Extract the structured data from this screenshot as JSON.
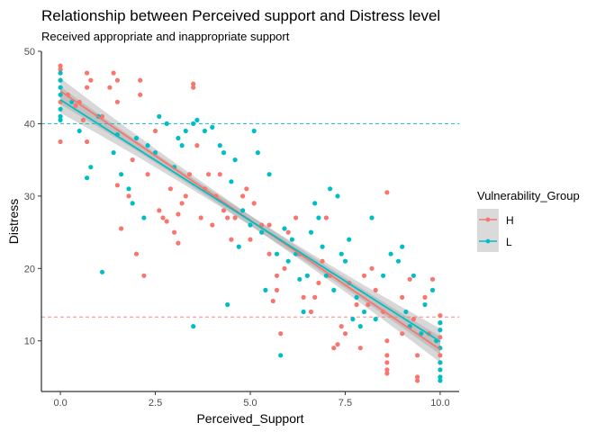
{
  "chart_data": {
    "type": "scatter",
    "title": "Relationship between Perceived support and Distress level",
    "subtitle": "Received appropriate and inappropriate support",
    "xlabel": "Perceived_Support",
    "ylabel": "Distress",
    "xlim": [
      -0.5,
      10.5
    ],
    "ylim": [
      3,
      50
    ],
    "xticks": [
      0,
      2.5,
      5,
      7.5,
      10
    ],
    "xtick_labels": [
      "0.0",
      "2.5",
      "5.0",
      "7.5",
      "10.0"
    ],
    "yticks": [
      10,
      20,
      30,
      40,
      50
    ],
    "ytick_labels": [
      "10",
      "20",
      "30",
      "40",
      "50"
    ],
    "grid": false,
    "legend": {
      "title": "Vulnerability_Group",
      "position": "right",
      "entries": [
        {
          "label": "H",
          "color": "#F8766D"
        },
        {
          "label": "L",
          "color": "#00BFC4"
        }
      ]
    },
    "reference_lines": [
      {
        "group": "L",
        "y": 40,
        "color": "#00BFC4",
        "style": "dashed"
      },
      {
        "group": "H",
        "y": 13.3,
        "color": "#F8766D",
        "style": "dashed"
      }
    ],
    "series": [
      {
        "name": "H",
        "color": "#F8766D",
        "trend": {
          "x": [
            0,
            10
          ],
          "y": [
            44.5,
            8.8
          ],
          "ci_halfwidth_ends": 1.8,
          "ci_halfwidth_mid": 0.7
        },
        "points": [
          [
            0,
            37.5
          ],
          [
            0,
            43
          ],
          [
            0,
            46
          ],
          [
            0,
            47.5
          ],
          [
            0,
            48
          ],
          [
            0.2,
            44
          ],
          [
            0.4,
            42.5
          ],
          [
            0.5,
            43
          ],
          [
            0.6,
            40.5
          ],
          [
            0.7,
            45
          ],
          [
            0.7,
            47
          ],
          [
            0.7,
            37.5
          ],
          [
            0.8,
            46
          ],
          [
            1.1,
            41
          ],
          [
            1.3,
            45
          ],
          [
            1.4,
            47
          ],
          [
            1.5,
            43
          ],
          [
            1.5,
            46
          ],
          [
            1.5,
            31.5
          ],
          [
            1.6,
            25.5
          ],
          [
            1.8,
            30
          ],
          [
            1.9,
            35
          ],
          [
            2.0,
            22
          ],
          [
            2.1,
            44
          ],
          [
            2.1,
            46
          ],
          [
            2.2,
            19
          ],
          [
            2.3,
            33
          ],
          [
            2.5,
            39
          ],
          [
            2.6,
            28
          ],
          [
            2.7,
            27
          ],
          [
            2.8,
            26.5
          ],
          [
            2.9,
            31
          ],
          [
            3.0,
            25
          ],
          [
            3.1,
            23.5
          ],
          [
            3.1,
            27.5
          ],
          [
            3.2,
            29
          ],
          [
            3.3,
            30
          ],
          [
            3.4,
            33
          ],
          [
            3.5,
            45
          ],
          [
            3.5,
            45.5
          ],
          [
            3.6,
            37
          ],
          [
            3.7,
            27
          ],
          [
            3.8,
            31
          ],
          [
            3.9,
            33
          ],
          [
            4.0,
            26
          ],
          [
            4.1,
            30
          ],
          [
            4.2,
            33
          ],
          [
            4.3,
            28
          ],
          [
            4.4,
            27
          ],
          [
            4.5,
            24
          ],
          [
            4.6,
            27
          ],
          [
            4.8,
            30
          ],
          [
            4.9,
            31
          ],
          [
            5.0,
            24
          ],
          [
            5.1,
            29
          ],
          [
            5.3,
            26
          ],
          [
            5.5,
            22
          ],
          [
            5.5,
            26
          ],
          [
            5.6,
            15.5
          ],
          [
            5.7,
            17
          ],
          [
            5.7,
            19
          ],
          [
            5.8,
            11
          ],
          [
            5.9,
            20
          ],
          [
            6.0,
            25
          ],
          [
            6.2,
            27
          ],
          [
            6.3,
            22
          ],
          [
            6.4,
            16
          ],
          [
            6.5,
            19
          ],
          [
            6.6,
            14
          ],
          [
            6.7,
            16
          ],
          [
            6.8,
            18
          ],
          [
            6.9,
            21
          ],
          [
            7.0,
            27
          ],
          [
            7.1,
            19
          ],
          [
            7.2,
            9
          ],
          [
            7.3,
            9.5
          ],
          [
            7.4,
            12
          ],
          [
            7.5,
            11
          ],
          [
            7.6,
            18
          ],
          [
            7.8,
            15
          ],
          [
            7.9,
            9
          ],
          [
            8.0,
            19
          ],
          [
            8.1,
            15
          ],
          [
            8.2,
            20
          ],
          [
            8.3,
            17
          ],
          [
            8.5,
            14
          ],
          [
            8.6,
            30.5
          ],
          [
            8.6,
            10
          ],
          [
            8.6,
            8
          ],
          [
            8.6,
            7
          ],
          [
            8.6,
            6
          ],
          [
            8.6,
            5.5
          ],
          [
            9.0,
            11
          ],
          [
            9.0,
            16
          ],
          [
            9.2,
            18.5
          ],
          [
            9.3,
            13
          ],
          [
            9.4,
            8
          ],
          [
            9.4,
            5
          ],
          [
            9.4,
            4.5
          ],
          [
            9.6,
            16
          ],
          [
            9.7,
            11
          ],
          [
            9.8,
            18.5
          ],
          [
            10.0,
            13.5
          ],
          [
            10.0,
            12.5
          ],
          [
            10.0,
            10.5
          ],
          [
            10.0,
            8
          ],
          [
            10.0,
            7
          ]
        ]
      },
      {
        "name": "L",
        "color": "#00BFC4",
        "trend": {
          "x": [
            0,
            10
          ],
          "y": [
            43.3,
            9.9
          ],
          "ci_halfwidth_ends": 1.8,
          "ci_halfwidth_mid": 0.7
        },
        "points": [
          [
            0,
            40.5
          ],
          [
            0,
            41
          ],
          [
            0,
            42
          ],
          [
            0,
            44
          ],
          [
            0,
            45
          ],
          [
            0,
            46
          ],
          [
            0,
            47
          ],
          [
            0.3,
            43
          ],
          [
            0.5,
            39
          ],
          [
            0.7,
            32.5
          ],
          [
            0.8,
            34
          ],
          [
            1.0,
            41
          ],
          [
            1.1,
            19.5
          ],
          [
            1.4,
            36
          ],
          [
            1.5,
            38.5
          ],
          [
            1.6,
            33
          ],
          [
            1.8,
            31
          ],
          [
            1.9,
            29
          ],
          [
            2.0,
            38
          ],
          [
            2.2,
            27
          ],
          [
            2.3,
            37
          ],
          [
            2.5,
            36
          ],
          [
            2.6,
            41
          ],
          [
            2.8,
            40
          ],
          [
            3.0,
            34
          ],
          [
            3.1,
            38
          ],
          [
            3.2,
            37
          ],
          [
            3.3,
            39
          ],
          [
            3.5,
            40
          ],
          [
            3.5,
            12
          ],
          [
            3.6,
            40.5
          ],
          [
            3.8,
            39
          ],
          [
            4.0,
            39.5
          ],
          [
            4.2,
            37
          ],
          [
            4.3,
            36
          ],
          [
            4.4,
            15
          ],
          [
            4.5,
            32
          ],
          [
            4.6,
            35
          ],
          [
            4.7,
            23
          ],
          [
            4.8,
            28
          ],
          [
            5.0,
            26
          ],
          [
            5.1,
            39
          ],
          [
            5.2,
            36
          ],
          [
            5.3,
            25
          ],
          [
            5.4,
            17
          ],
          [
            5.5,
            33
          ],
          [
            5.7,
            22
          ],
          [
            5.8,
            8
          ],
          [
            5.9,
            25.5
          ],
          [
            6.0,
            21
          ],
          [
            6.1,
            24
          ],
          [
            6.2,
            22
          ],
          [
            6.3,
            18.5
          ],
          [
            6.4,
            14
          ],
          [
            6.5,
            19
          ],
          [
            6.6,
            25
          ],
          [
            6.7,
            29
          ],
          [
            6.8,
            27
          ],
          [
            6.9,
            23
          ],
          [
            7.0,
            19
          ],
          [
            7.1,
            31
          ],
          [
            7.2,
            17
          ],
          [
            7.3,
            30
          ],
          [
            7.4,
            22
          ],
          [
            7.5,
            21
          ],
          [
            7.6,
            24
          ],
          [
            7.7,
            13
          ],
          [
            7.8,
            16
          ],
          [
            7.9,
            12
          ],
          [
            8.0,
            14
          ],
          [
            8.2,
            27
          ],
          [
            8.3,
            13
          ],
          [
            8.5,
            19
          ],
          [
            8.7,
            22
          ],
          [
            8.9,
            21
          ],
          [
            9.0,
            23
          ],
          [
            9.1,
            14
          ],
          [
            9.2,
            12
          ],
          [
            9.3,
            19
          ],
          [
            9.5,
            11
          ],
          [
            9.6,
            15
          ],
          [
            9.8,
            17
          ],
          [
            9.9,
            10
          ],
          [
            10.0,
            12.5
          ],
          [
            10.0,
            11.5
          ],
          [
            10.0,
            9
          ],
          [
            10.0,
            7
          ],
          [
            10.0,
            6
          ],
          [
            10.0,
            5
          ],
          [
            10.0,
            4.5
          ]
        ]
      }
    ]
  }
}
